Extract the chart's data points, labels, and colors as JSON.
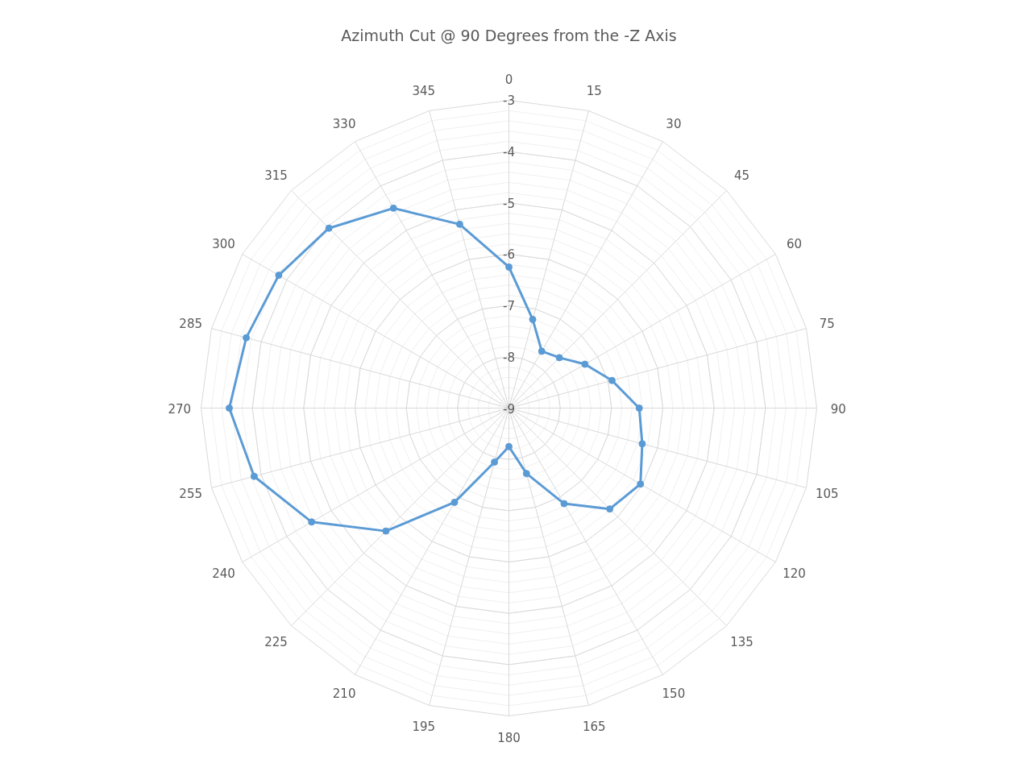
{
  "chart_data": {
    "type": "radar",
    "title": "Azimuth Cut @ 90 Degrees from the -Z Axis",
    "categories": [
      "0",
      "15",
      "30",
      "45",
      "60",
      "75",
      "90",
      "105",
      "120",
      "135",
      "150",
      "165",
      "180",
      "195",
      "210",
      "225",
      "240",
      "255",
      "270",
      "285",
      "300",
      "315",
      "330",
      "345"
    ],
    "series": [
      {
        "color": "#5b9bd5",
        "values": [
          -6.25,
          -7.21,
          -7.72,
          -7.61,
          -7.29,
          -6.92,
          -6.46,
          -6.31,
          -6.04,
          -6.22,
          -6.85,
          -7.68,
          -8.25,
          -7.91,
          -6.88,
          -5.61,
          -4.56,
          -3.86,
          -3.55,
          -3.7,
          -3.82,
          -4.04,
          -4.5,
          -5.29
        ]
      }
    ],
    "ylim": [
      -9,
      -3
    ],
    "yticks": [
      -9,
      -8,
      -7,
      -6,
      -5,
      -4,
      -3
    ],
    "grid": true,
    "marker": "circle",
    "line_style": "solid"
  }
}
